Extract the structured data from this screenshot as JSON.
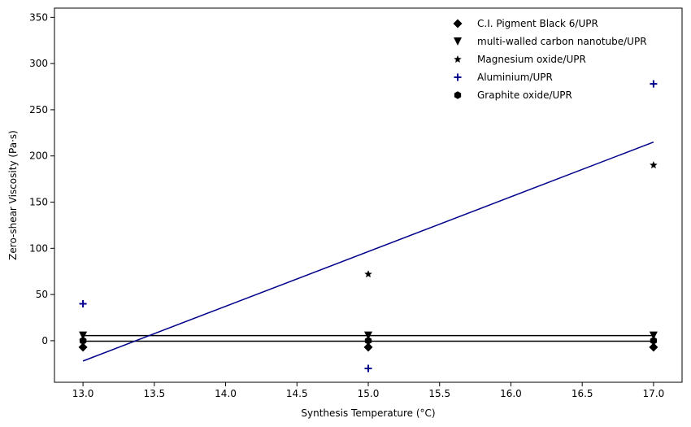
{
  "chart_data": {
    "type": "scatter",
    "title": "",
    "xlabel": "Synthesis Temperature (°C)",
    "ylabel": "Zero-shear Viscosity (Pa·s)",
    "xlim": [
      12.8,
      17.2
    ],
    "ylim": [
      -45,
      360
    ],
    "x_ticks": [
      13.0,
      13.5,
      14.0,
      14.5,
      15.0,
      15.5,
      16.0,
      16.5,
      17.0
    ],
    "x_tick_labels": [
      "13.0",
      "13.5",
      "14.0",
      "14.5",
      "15.0",
      "15.5",
      "16.0",
      "16.5",
      "17.0"
    ],
    "y_ticks": [
      0,
      50,
      100,
      150,
      200,
      250,
      300,
      350
    ],
    "y_tick_labels": [
      "0",
      "50",
      "100",
      "150",
      "200",
      "250",
      "300",
      "350"
    ],
    "grid": false,
    "legend_position": "top-right",
    "x": [
      13.0,
      15.0,
      17.0
    ],
    "series": [
      {
        "name": "C.I. Pigment Black 6/UPR",
        "marker": "diamond",
        "color": "#000000",
        "values": [
          -7,
          -7,
          -7
        ],
        "fit_line": [
          -0.5,
          -0.5
        ]
      },
      {
        "name": "multi-walled carbon nanotube/UPR",
        "marker": "triangle-down",
        "color": "#000000",
        "values": [
          5.5,
          5.5,
          5.5
        ],
        "fit_line": [
          5.5,
          5.5
        ]
      },
      {
        "name": "Magnesium oxide/UPR",
        "marker": "star",
        "color": "#000000",
        "values": [
          0,
          72,
          190
        ]
      },
      {
        "name": "Aluminium/UPR",
        "marker": "plus",
        "color": "#00008b",
        "values": [
          40,
          -30,
          278
        ],
        "fit_line": [
          -22,
          215
        ]
      },
      {
        "name": "Graphite oxide/UPR",
        "marker": "hexagon",
        "color": "#000000",
        "values": [
          0,
          0,
          0
        ]
      }
    ]
  }
}
